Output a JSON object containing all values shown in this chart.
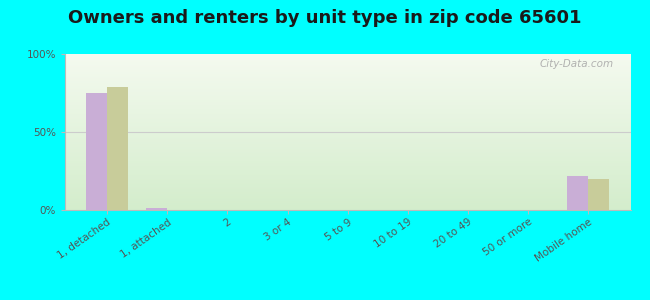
{
  "title": "Owners and renters by unit type in zip code 65601",
  "categories": [
    "1, detached",
    "1, attached",
    "2",
    "3 or 4",
    "5 to 9",
    "10 to 19",
    "20 to 49",
    "50 or more",
    "Mobile home"
  ],
  "owner_values": [
    75,
    1,
    0,
    0,
    0,
    0,
    0,
    0,
    22
  ],
  "renter_values": [
    79,
    0,
    0,
    0,
    0,
    0,
    0,
    0,
    20
  ],
  "owner_color": "#c9aed6",
  "renter_color": "#c8cc9a",
  "background_color": "#00ffff",
  "ylim": [
    0,
    100
  ],
  "yticks": [
    0,
    50,
    100
  ],
  "ytick_labels": [
    "0%",
    "50%",
    "100%"
  ],
  "bar_width": 0.35,
  "watermark": "City-Data.com",
  "title_fontsize": 13,
  "tick_fontsize": 7.5,
  "legend_fontsize": 9
}
